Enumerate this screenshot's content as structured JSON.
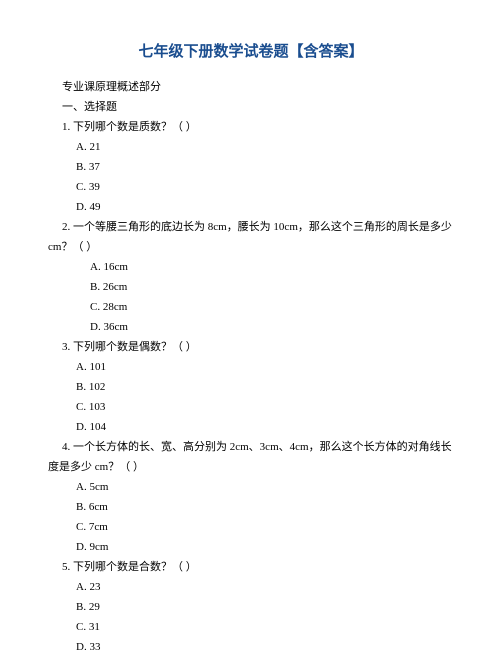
{
  "title": "七年级下册数学试卷题【含答案】",
  "subtitle": "专业课原理概述部分",
  "section_header": "一、选择题",
  "questions": [
    {
      "stem": "1. 下列哪个数是质数？（  ）",
      "options": [
        "A. 21",
        "B. 37",
        "C. 39",
        "D. 49"
      ]
    },
    {
      "stem": "2. 一个等腰三角形的底边长为 8cm，腰长为 10cm，那么这个三角形的周长是多少",
      "stem_cont": "cm？（  ）",
      "options": [
        "A. 16cm",
        "B. 26cm",
        "C. 28cm",
        "D. 36cm"
      ]
    },
    {
      "stem": "3. 下列哪个数是偶数？（   ）",
      "options": [
        "A. 101",
        "B. 102",
        "C. 103",
        "D. 104"
      ]
    },
    {
      "stem": "4. 一个长方体的长、宽、高分别为 2cm、3cm、4cm，那么这个长方体的对角线长",
      "stem_cont": "度是多少 cm？（  ）",
      "options": [
        "A. 5cm",
        "B. 6cm",
        "C. 7cm",
        "D. 9cm"
      ]
    },
    {
      "stem": "5. 下列哪个数是合数？（   ）",
      "options": [
        "A. 23",
        "B. 29",
        "C. 31",
        "D. 33"
      ]
    }
  ]
}
